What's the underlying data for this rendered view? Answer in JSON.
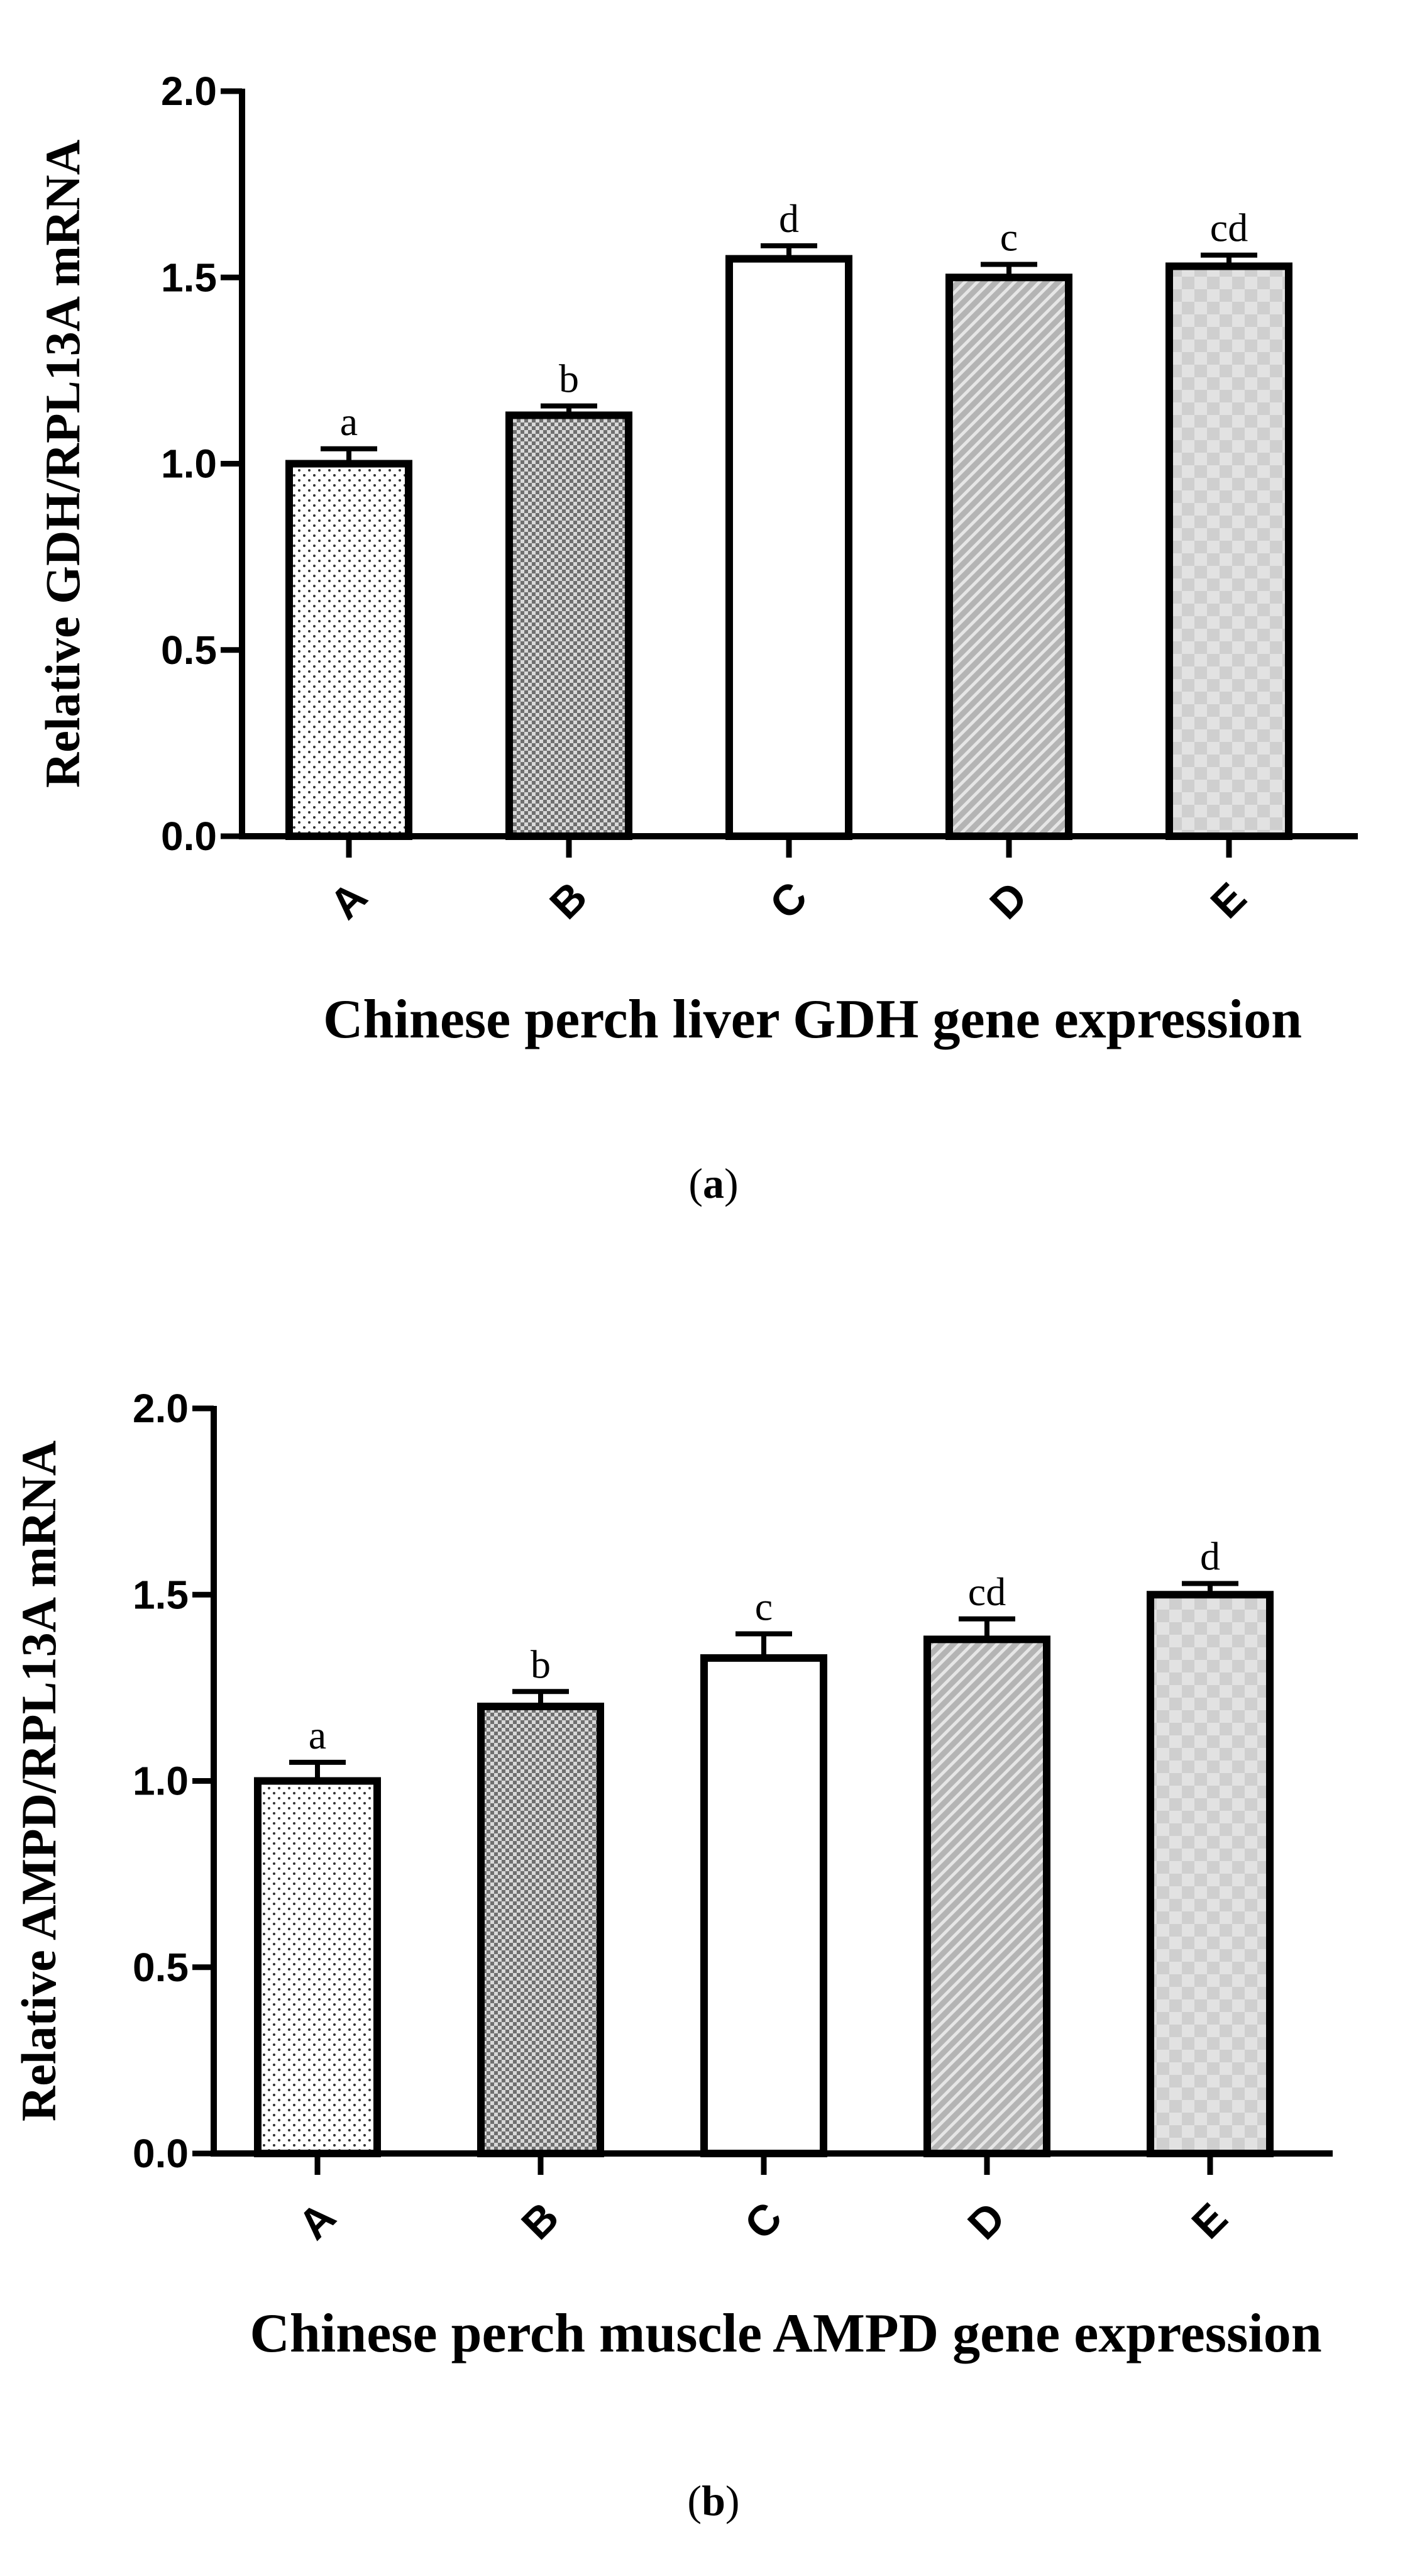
{
  "chart_data": [
    {
      "type": "bar",
      "panel": "(a)",
      "panel_letter": "a",
      "xlabel": "Chinese perch liver GDH gene expression",
      "ylabel": "Relative GDH/RPL13A mRNA",
      "categories": [
        "A",
        "B",
        "C",
        "D",
        "E"
      ],
      "values": [
        1.0,
        1.13,
        1.55,
        1.5,
        1.53
      ],
      "errors": [
        0.04,
        0.025,
        0.035,
        0.035,
        0.03
      ],
      "significance": [
        "a",
        "b",
        "d",
        "c",
        "cd"
      ],
      "ylim": [
        0,
        2.0
      ],
      "yticks": [
        "0.0",
        "0.5",
        "1.0",
        "1.5",
        "2.0"
      ],
      "patterns": [
        "dots",
        "checker-dark",
        "none",
        "diagonal-stripes",
        "checker-light"
      ]
    },
    {
      "type": "bar",
      "panel": "(b)",
      "panel_letter": "b",
      "xlabel": "Chinese perch muscle AMPD gene expression",
      "ylabel": "Relative AMPD/RPL13A mRNA",
      "categories": [
        "A",
        "B",
        "C",
        "D",
        "E"
      ],
      "values": [
        1.0,
        1.2,
        1.33,
        1.38,
        1.5
      ],
      "errors": [
        0.05,
        0.04,
        0.065,
        0.055,
        0.03
      ],
      "significance": [
        "a",
        "b",
        "c",
        "cd",
        "d"
      ],
      "ylim": [
        0,
        2.0
      ],
      "yticks": [
        "0.0",
        "0.5",
        "1.0",
        "1.5",
        "2.0"
      ],
      "patterns": [
        "dots",
        "checker-dark",
        "none",
        "diagonal-stripes",
        "checker-light"
      ]
    }
  ]
}
